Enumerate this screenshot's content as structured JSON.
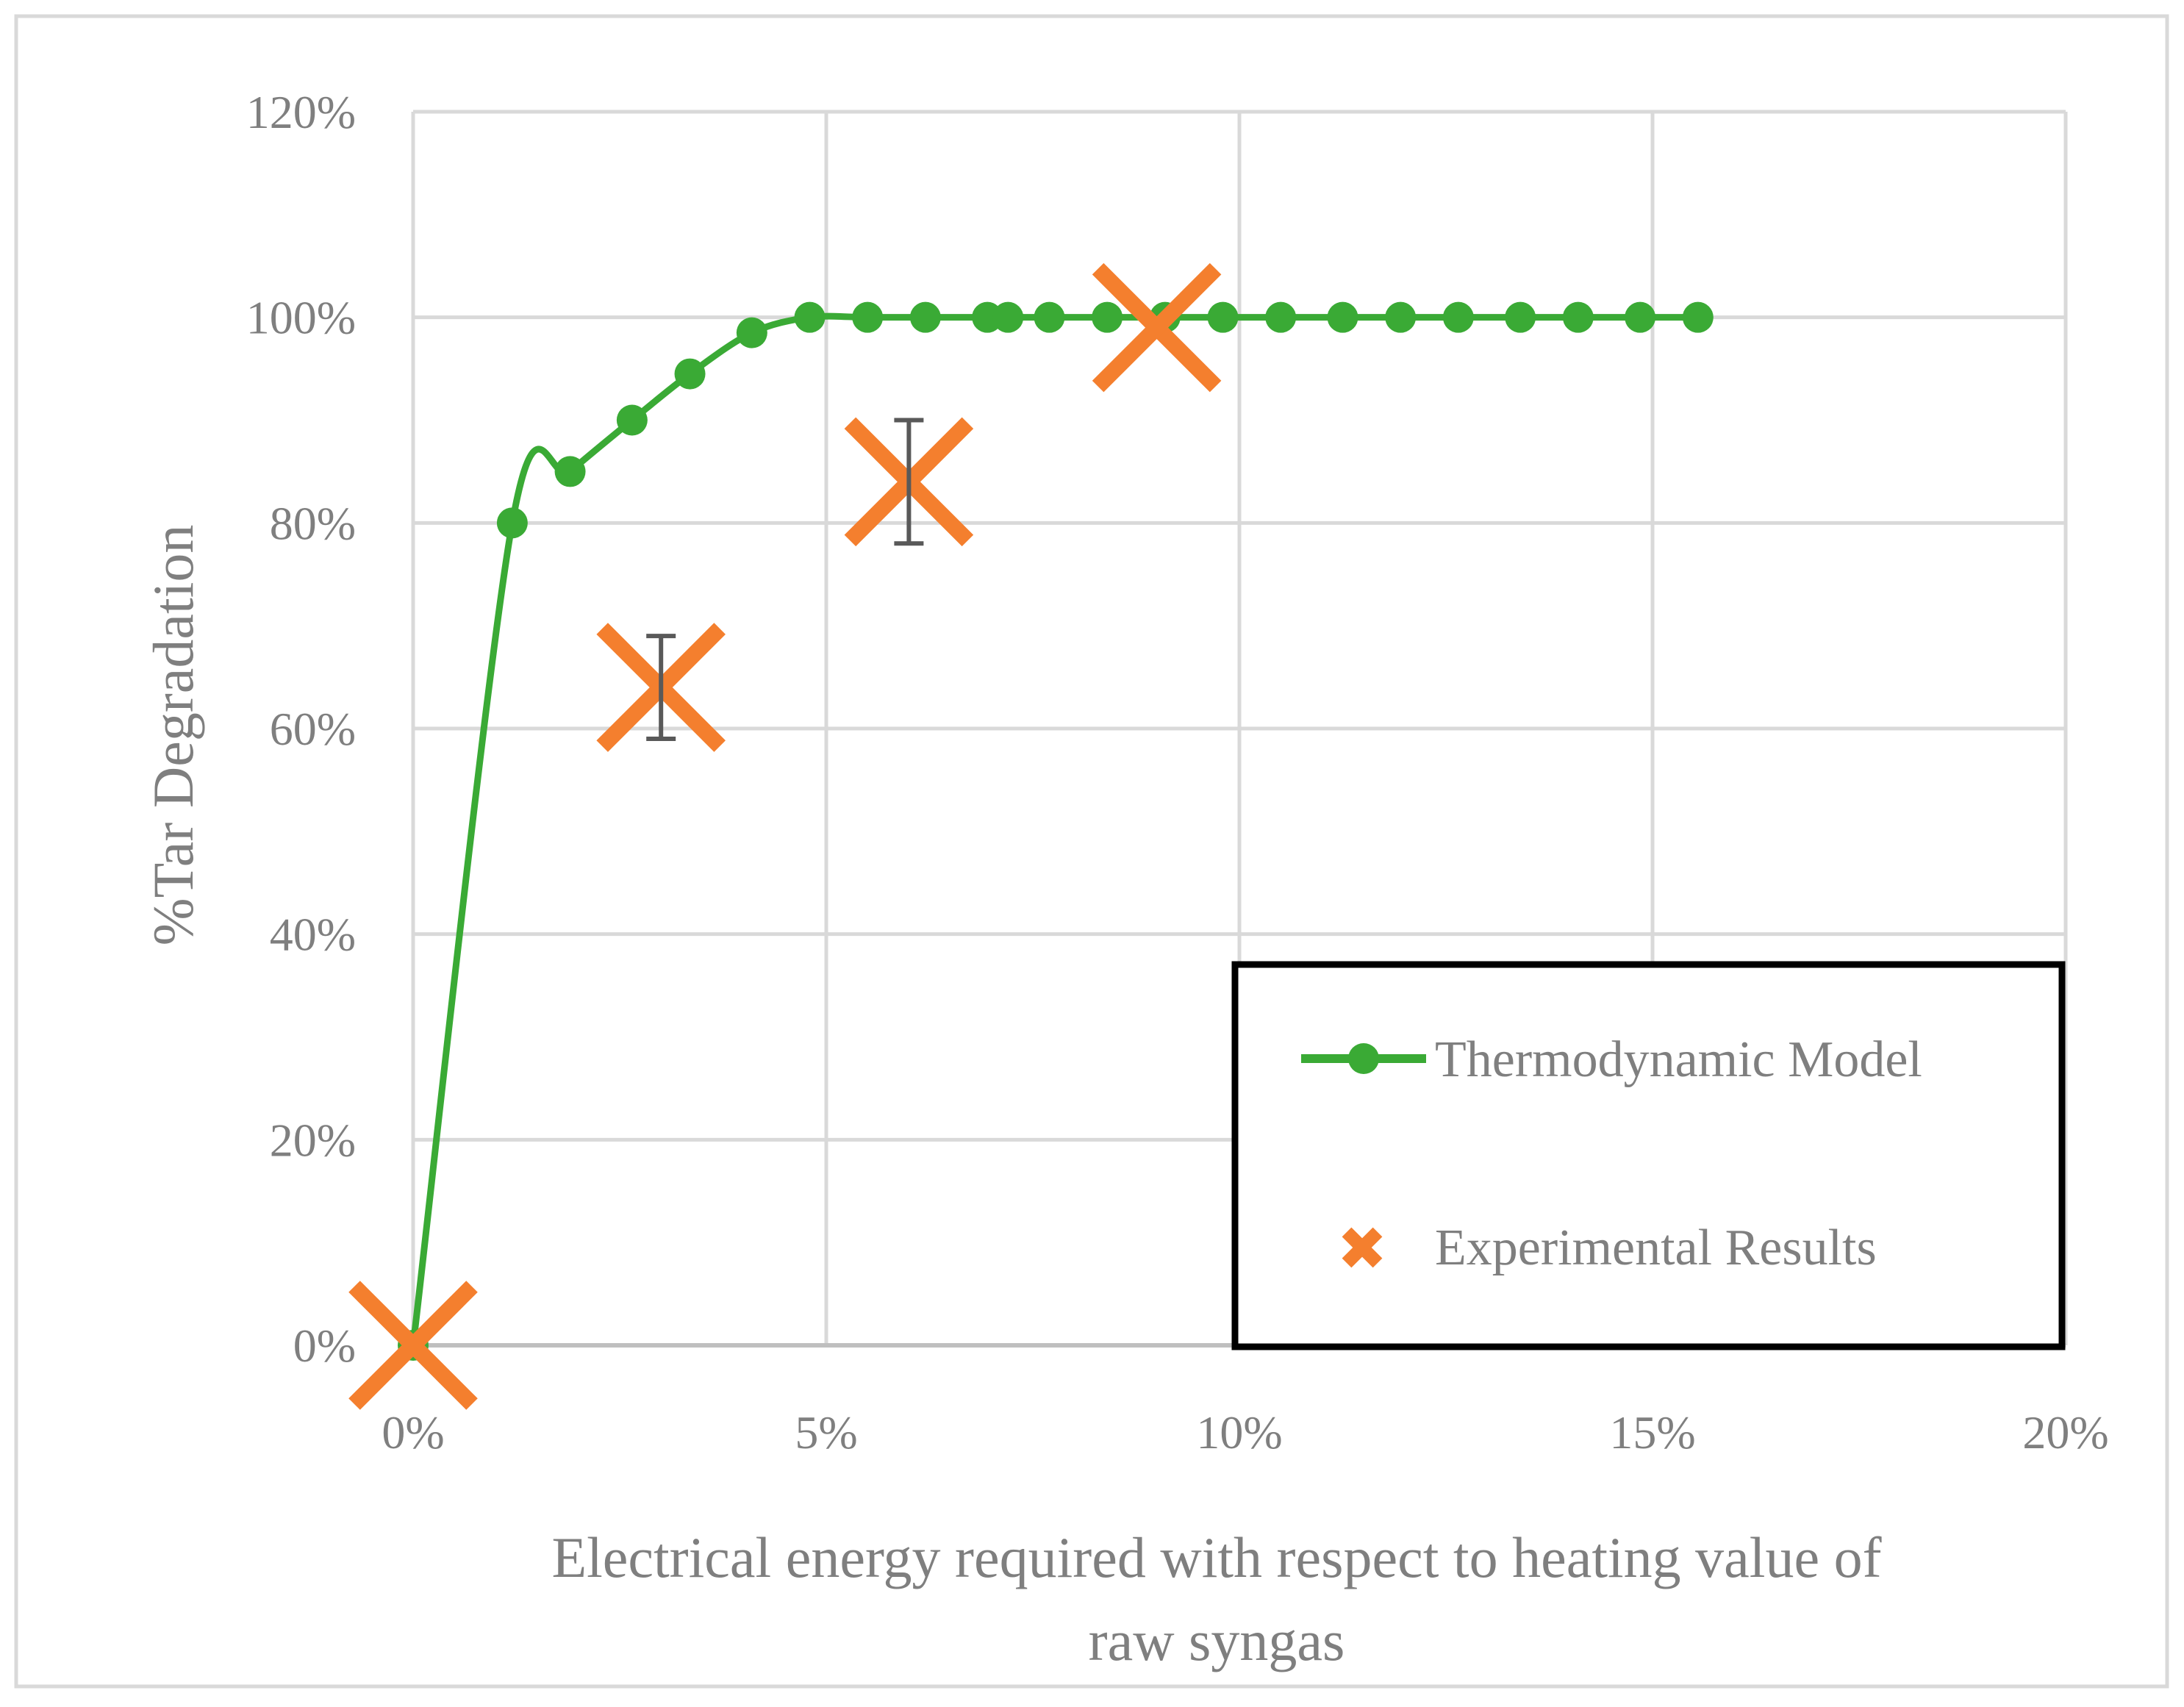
{
  "chart_data": {
    "type": "scatter",
    "xlabel_lines": [
      "Electrical energy required with respect to heating value of",
      "raw syngas"
    ],
    "ylabel": "%Tar Degradation",
    "xlim": [
      0,
      20
    ],
    "ylim": [
      0,
      120
    ],
    "x_ticks": [
      0,
      5,
      10,
      15,
      20
    ],
    "y_ticks": [
      0,
      20,
      40,
      60,
      80,
      100,
      120
    ],
    "x_tick_labels": [
      "0%",
      "5%",
      "10%",
      "15%",
      "20%"
    ],
    "y_tick_labels": [
      "0%",
      "20%",
      "40%",
      "60%",
      "80%",
      "100%",
      "120%"
    ],
    "grid": true,
    "legend_position": "bottom-right",
    "series": [
      {
        "name": "Thermodynamic Model",
        "kind": "line-markers",
        "color": "#3aaa35",
        "x": [
          0,
          1.2,
          1.9,
          2.65,
          3.35,
          4.1,
          4.8,
          5.5,
          6.2,
          6.95,
          7.2,
          7.7,
          8.4,
          9.1,
          9.8,
          10.5,
          11.25,
          11.95,
          12.65,
          13.4,
          14.1,
          14.85,
          15.55
        ],
        "y": [
          0,
          80,
          85,
          90,
          94.5,
          98.5,
          100,
          100,
          100,
          100,
          100,
          100,
          100,
          100,
          100,
          100,
          100,
          100,
          100,
          100,
          100,
          100,
          100
        ]
      },
      {
        "name": "Experimental Results",
        "kind": "markers",
        "color": "#f47f2e",
        "x": [
          0,
          3,
          6,
          9
        ],
        "y": [
          0,
          64,
          84,
          99
        ],
        "error": [
          null,
          5,
          6,
          null
        ]
      }
    ]
  }
}
